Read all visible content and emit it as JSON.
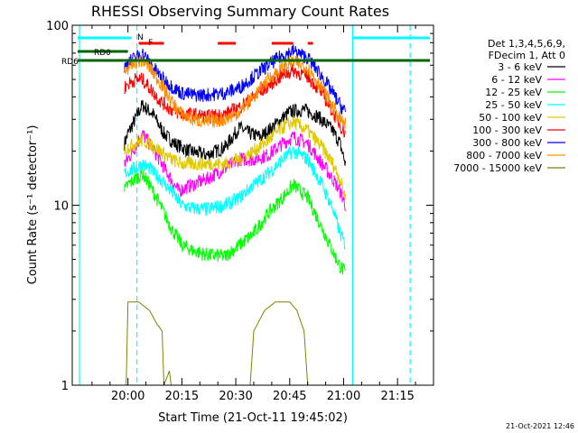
{
  "chart_data": {
    "type": "line",
    "title": "RHESSI Observing Summary Count Rates",
    "xlabel": "Start Time (21-Oct-11 19:45:02)",
    "ylabel": "Count Rate (s⁻¹ detector⁻¹)",
    "yscale": "log",
    "ylim": [
      1,
      100
    ],
    "xlim_minutes": [
      -15.5,
      85
    ],
    "x_ticks": [
      {
        "label": "20:00",
        "minute": 0
      },
      {
        "label": "20:15",
        "minute": 15
      },
      {
        "label": "20:30",
        "minute": 30
      },
      {
        "label": "20:45",
        "minute": 45
      },
      {
        "label": "21:00",
        "minute": 60
      },
      {
        "label": "21:15",
        "minute": 75
      }
    ],
    "y_ticks": [
      {
        "label": "1",
        "value": 1
      },
      {
        "label": "10",
        "value": 10
      },
      {
        "label": "100",
        "value": 100
      }
    ],
    "legend": {
      "placement": "right",
      "header": [
        "Det 1,3,4,5,6,9,",
        "FDecim 1, Att 0"
      ],
      "entries": [
        {
          "label": "3 - 6 keV",
          "color": "#000000"
        },
        {
          "label": "6 - 12 keV",
          "color": "#ff00ff"
        },
        {
          "label": "12 - 25 keV",
          "color": "#00ff00"
        },
        {
          "label": "25 - 50 keV",
          "color": "#00ffff"
        },
        {
          "label": "50 - 100 keV",
          "color": "#e0c800"
        },
        {
          "label": "100 - 300 keV",
          "color": "#ff0000"
        },
        {
          "label": "300 - 800 keV",
          "color": "#0000ff"
        },
        {
          "label": "800 - 7000 keV",
          "color": "#ff8c00"
        },
        {
          "label": "7000 - 15000 keV",
          "color": "#808000"
        }
      ]
    },
    "series": [
      {
        "name": "3 - 6 keV",
        "color": "#000000",
        "x": [
          -1,
          0,
          2,
          4,
          7,
          10,
          13,
          17,
          22,
          27,
          31,
          34,
          37,
          41,
          45,
          49,
          53,
          57,
          59,
          60.5
        ],
        "y": [
          22,
          25,
          30,
          36,
          32,
          25,
          22,
          20,
          19,
          21,
          27,
          25,
          24,
          28,
          33,
          34,
          31,
          26,
          22,
          17
        ]
      },
      {
        "name": "6 - 12 keV",
        "color": "#ff00ff",
        "x": [
          -1,
          0,
          2,
          4,
          6,
          8,
          11,
          14,
          18,
          22,
          27,
          31,
          35,
          39,
          43,
          46,
          50,
          54,
          57,
          59,
          60.5
        ],
        "y": [
          17,
          18,
          21,
          25,
          22,
          19,
          15,
          12,
          13,
          14,
          16,
          18,
          18,
          19,
          22,
          24,
          22,
          17,
          14,
          12,
          10
        ]
      },
      {
        "name": "12 - 25 keV",
        "color": "#00ff00",
        "x": [
          -1,
          0,
          2,
          4,
          6,
          9,
          12,
          15,
          18,
          22,
          27,
          31,
          35,
          39,
          43,
          46,
          50,
          54,
          57,
          59,
          60.5
        ],
        "y": [
          12,
          13,
          14,
          15,
          13,
          10,
          7.5,
          6,
          5.6,
          5.3,
          5.2,
          6,
          7,
          9,
          11,
          13,
          11,
          7.5,
          5.5,
          4.6,
          4.2
        ]
      },
      {
        "name": "25 - 50 keV",
        "color": "#00ffff",
        "x": [
          -1,
          0,
          2,
          4,
          6,
          9,
          12,
          15,
          18,
          22,
          27,
          31,
          35,
          39,
          43,
          46,
          50,
          54,
          57,
          59,
          60.5
        ],
        "y": [
          15,
          15.5,
          16,
          17,
          16,
          14,
          12,
          10,
          9.6,
          9.5,
          10,
          11,
          13,
          15,
          18,
          20,
          18,
          13,
          9.5,
          7,
          6
        ]
      },
      {
        "name": "50 - 100 keV",
        "color": "#e0c800",
        "x": [
          -1,
          0,
          2,
          4,
          6,
          9,
          12,
          15,
          18,
          22,
          27,
          31,
          35,
          39,
          43,
          46,
          50,
          54,
          57,
          59,
          60.5
        ],
        "y": [
          20,
          21,
          22,
          23,
          22,
          20,
          18,
          17,
          17,
          17,
          17,
          18,
          20,
          23,
          27,
          29,
          26,
          21,
          17,
          14,
          11
        ]
      },
      {
        "name": "100 - 300 keV",
        "color": "#ff0000",
        "x": [
          -1,
          0,
          2,
          4,
          6,
          9,
          12,
          15,
          18,
          22,
          27,
          31,
          35,
          39,
          43,
          46,
          50,
          54,
          57,
          59,
          60.5
        ],
        "y": [
          45,
          47,
          50,
          50,
          45,
          38,
          34,
          32,
          32,
          31,
          32,
          35,
          40,
          46,
          53,
          56,
          52,
          42,
          33,
          28,
          25
        ]
      },
      {
        "name": "300 - 800 keV",
        "color": "#0000ff",
        "x": [
          -1,
          0,
          2,
          4,
          6,
          9,
          12,
          15,
          18,
          22,
          27,
          31,
          35,
          39,
          43,
          46,
          50,
          54,
          57,
          59,
          60.5
        ],
        "y": [
          58,
          62,
          66,
          70,
          62,
          52,
          46,
          42,
          41,
          41,
          42,
          45,
          52,
          60,
          68,
          72,
          66,
          52,
          42,
          36,
          33
        ]
      },
      {
        "name": "800 - 7000 keV",
        "color": "#ff8c00",
        "x": [
          -1,
          0,
          2,
          4,
          6,
          9,
          12,
          15,
          18,
          22,
          27,
          31,
          35,
          39,
          43,
          46,
          50,
          54,
          57,
          59,
          60.5
        ],
        "y": [
          55,
          58,
          62,
          64,
          58,
          48,
          38,
          32,
          30,
          29,
          30,
          33,
          40,
          50,
          58,
          63,
          58,
          45,
          35,
          30,
          28
        ]
      },
      {
        "name": "7000 - 15000 keV",
        "color": "#808000",
        "x": [
          -0.5,
          0,
          3,
          6,
          8,
          9.5,
          10,
          11.5,
          12,
          34,
          35,
          38,
          41,
          45,
          47,
          49,
          50
        ],
        "y": [
          1,
          2.9,
          2.9,
          2.6,
          2.2,
          2,
          1,
          1.2,
          1,
          1,
          2,
          2.6,
          2.9,
          2.9,
          2.6,
          2,
          1
        ]
      }
    ],
    "annotations": [
      {
        "text": "RD0",
        "color": "#006400"
      },
      {
        "text": "RD6",
        "color": "#006400"
      },
      {
        "text": "N",
        "color": "#00ffff"
      },
      {
        "text": "F",
        "color": "#ff0000"
      }
    ],
    "vertical_lines": [
      {
        "minute": -13.5,
        "color": "#00ffff",
        "style": "solid"
      },
      {
        "minute": 2.5,
        "color": "#00ffff",
        "style": "dashed"
      },
      {
        "minute": 62.5,
        "color": "#00ffff",
        "style": "solid"
      },
      {
        "minute": 78.5,
        "color": "#00ffff",
        "style": "dashed"
      }
    ]
  },
  "footer": {
    "timestamp": "21-Oct-2021 12:46"
  }
}
